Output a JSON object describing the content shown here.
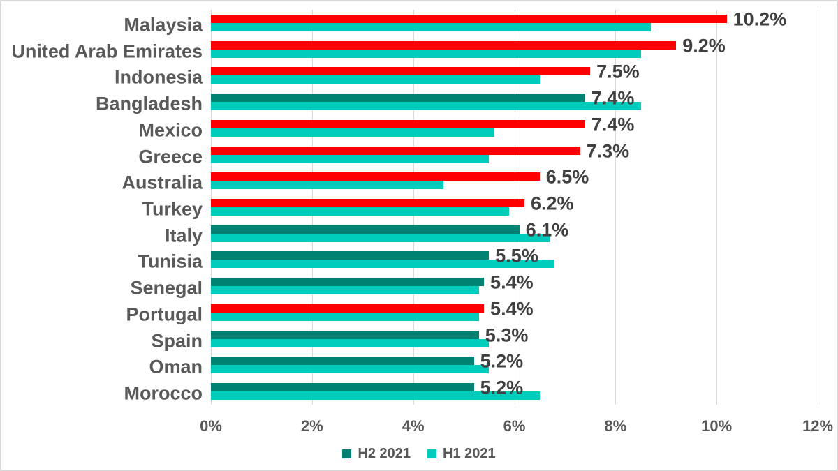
{
  "chart_data": {
    "type": "bar",
    "orientation": "horizontal",
    "title": "",
    "categories": [
      "Malaysia",
      "United Arab Emirates",
      "Indonesia",
      "Bangladesh",
      "Mexico",
      "Greece",
      "Australia",
      "Turkey",
      "Italy",
      "Tunisia",
      "Senegal",
      "Portugal",
      "Spain",
      "Oman",
      "Morocco"
    ],
    "series": [
      {
        "name": "H2 2021",
        "values": [
          10.2,
          9.2,
          7.5,
          7.4,
          7.4,
          7.3,
          6.5,
          6.2,
          6.1,
          5.5,
          5.4,
          5.4,
          5.3,
          5.2,
          5.2
        ],
        "data_labels": [
          "10.2%",
          "9.2%",
          "7.5%",
          "7.4%",
          "7.4%",
          "7.3%",
          "6.5%",
          "6.2%",
          "6.1%",
          "5.5%",
          "5.4%",
          "5.4%",
          "5.3%",
          "5.2%",
          "5.2%"
        ],
        "base_color": "#008272",
        "bar_colors": [
          "#FF0000",
          "#FF0000",
          "#FF0000",
          "#008272",
          "#FF0000",
          "#FF0000",
          "#FF0000",
          "#FF0000",
          "#008272",
          "#008272",
          "#008272",
          "#FF0000",
          "#008272",
          "#008272",
          "#008272"
        ]
      },
      {
        "name": "H1 2021",
        "values": [
          8.7,
          8.5,
          6.5,
          8.5,
          5.6,
          5.5,
          4.6,
          5.9,
          6.7,
          6.8,
          5.3,
          5.3,
          5.5,
          5.5,
          6.5
        ],
        "color": "#00CCBC"
      }
    ],
    "x_axis": {
      "tick_labels": [
        "0%",
        "2%",
        "4%",
        "6%",
        "8%",
        "10%",
        "12%"
      ],
      "min": 0,
      "max": 12,
      "grid": true
    },
    "legend": {
      "position": "bottom",
      "items": [
        {
          "label": "H2 2021",
          "color": "#008272"
        },
        {
          "label": "H1 2021",
          "color": "#00CCBC"
        }
      ]
    },
    "colors": {
      "increase_highlight_red": "#FF0000",
      "h2_teal": "#008272",
      "h1_turquoise": "#00CCBC",
      "gridline": "#D9D9D9",
      "axis_text": "#595959",
      "data_label_text": "#404040",
      "background": "#FFFFFF",
      "frame_border": "#D9D9D9"
    }
  }
}
